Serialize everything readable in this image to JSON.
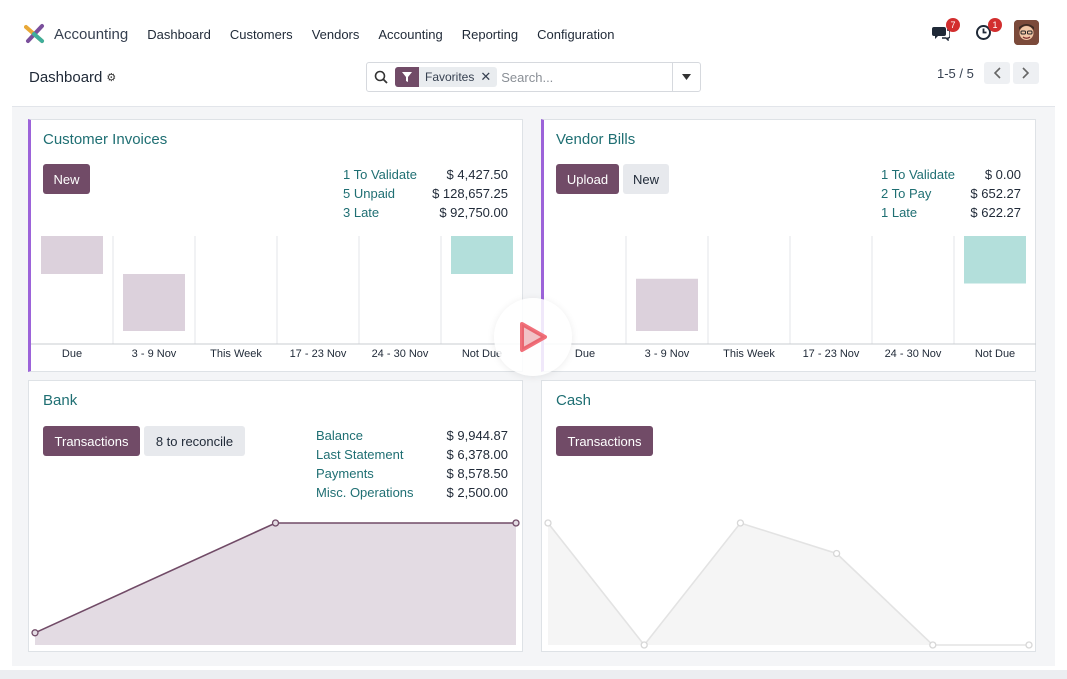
{
  "navbar": {
    "app_name": "Accounting",
    "menu": [
      "Dashboard",
      "Customers",
      "Vendors",
      "Accounting",
      "Reporting",
      "Configuration"
    ],
    "messages_count": "7",
    "activities_count": "1",
    "logo_icon": "odoo-accounting-logo",
    "brand_color": "#714b67"
  },
  "control": {
    "breadcrumb": "Dashboard",
    "search": {
      "facet_label": "Favorites",
      "placeholder": "Search..."
    },
    "pager": "1-5 / 5"
  },
  "customer_invoices": {
    "title": "Customer Invoices",
    "new_button": "New",
    "stats": [
      {
        "label": "1 To Validate",
        "value": "$ 4,427.50"
      },
      {
        "label": "5 Unpaid",
        "value": "$ 128,657.25"
      },
      {
        "label": "3 Late",
        "value": "$ 92,750.00"
      }
    ],
    "chart_data": {
      "type": "bar",
      "categories": [
        "Due",
        "3 - 9 Nov",
        "This Week",
        "17 - 23 Nov",
        "24 - 30 Nov",
        "Not Due"
      ],
      "bars": [
        {
          "low": 0.6,
          "high": 1.0,
          "color": "#dcd1dc"
        },
        {
          "low": 0.0,
          "high": 0.6,
          "color": "#dcd1dc"
        },
        null,
        null,
        null,
        {
          "low": 0.6,
          "high": 1.0,
          "color": "#b3dfdb"
        }
      ]
    }
  },
  "vendor_bills": {
    "title": "Vendor Bills",
    "upload_button": "Upload",
    "new_button": "New",
    "stats": [
      {
        "label": "1 To Validate",
        "value": "$ 0.00"
      },
      {
        "label": "2 To Pay",
        "value": "$ 652.27"
      },
      {
        "label": "1 Late",
        "value": "$ 622.27"
      }
    ],
    "chart_data": {
      "type": "bar",
      "categories": [
        "Due",
        "3 - 9 Nov",
        "This Week",
        "17 - 23 Nov",
        "24 - 30 Nov",
        "Not Due"
      ],
      "bars": [
        null,
        {
          "low": 0.0,
          "high": 0.55,
          "color": "#dcd1dc"
        },
        null,
        null,
        null,
        {
          "low": 0.5,
          "high": 1.0,
          "color": "#b3dfdb"
        }
      ]
    }
  },
  "bank": {
    "title": "Bank",
    "transactions_button": "Transactions",
    "reconcile_button": "8 to reconcile",
    "stats": [
      {
        "label": "Balance",
        "value": "$ 9,944.87"
      },
      {
        "label": "Last Statement",
        "value": "$ 6,378.00"
      },
      {
        "label": "Payments",
        "value": "$ 8,578.50"
      },
      {
        "label": "Misc. Operations",
        "value": "$ 2,500.00"
      }
    ],
    "chart_data": {
      "type": "area",
      "x": [
        0,
        1,
        2
      ],
      "y": [
        0.1,
        1.0,
        1.0
      ],
      "line_color": "#714b67",
      "fill_color": "#e3dbe3"
    }
  },
  "cash": {
    "title": "Cash",
    "transactions_button": "Transactions",
    "chart_data": {
      "type": "area",
      "x": [
        0,
        1,
        2,
        3,
        4,
        5
      ],
      "y": [
        1.0,
        0.0,
        1.0,
        0.75,
        0.0,
        0.0
      ],
      "line_color": "#e3e3e3",
      "fill_color": "#f5f5f5"
    }
  },
  "overlay": {
    "play_icon": "play-icon"
  }
}
